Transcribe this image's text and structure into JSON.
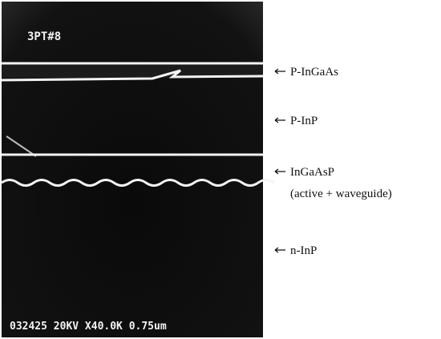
{
  "image": {
    "corner_label": "3PT#8",
    "scale_bar_text": "032425 20KV X40.0K 0.75um"
  },
  "labels": [
    "P-InGaAs",
    "P-InP",
    "InGaAsP",
    "(active + waveguide)",
    "n-InP"
  ]
}
